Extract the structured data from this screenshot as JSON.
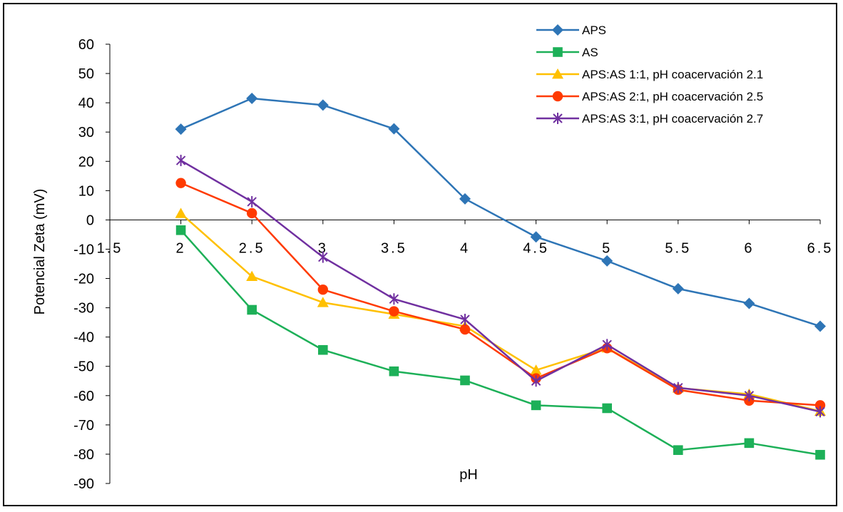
{
  "chart_data": {
    "type": "line",
    "xlabel": "pH",
    "ylabel": "Potencial Zeta (mV)",
    "xlim": [
      1.5,
      6.5
    ],
    "ylim": [
      -90,
      60
    ],
    "x_ticks": [
      "1.5",
      "2",
      "2.5",
      "3",
      "3.5",
      "4",
      "4.5",
      "5",
      "5.5",
      "6",
      "6.5"
    ],
    "y_ticks": [
      "60",
      "50",
      "40",
      "30",
      "20",
      "10",
      "0",
      "-10",
      "-20",
      "-30",
      "-40",
      "-50",
      "-60",
      "-70",
      "-80",
      "-90"
    ],
    "legend_position": "top-right",
    "grid": false,
    "series": [
      {
        "name": "APS",
        "color": "#2E75B6",
        "marker": "diamond",
        "x": [
          2,
          2.5,
          3,
          3.5,
          4,
          4.5,
          5,
          5.5,
          6,
          6.5
        ],
        "y": [
          31,
          41.5,
          39.2,
          31.1,
          7.2,
          -5.8,
          -14,
          -23.5,
          -28.5,
          -36.3
        ]
      },
      {
        "name": "AS",
        "color": "#1DB058",
        "marker": "square",
        "x": [
          2,
          2.5,
          3,
          3.5,
          4,
          4.5,
          5,
          5.5,
          6,
          6.5
        ],
        "y": [
          -3.5,
          -30.7,
          -44.4,
          -51.7,
          -54.8,
          -63.3,
          -64.3,
          -78.6,
          -76.2,
          -80.2
        ]
      },
      {
        "name": "APS:AS 1:1, pH coacervación 2.1",
        "color": "#FFC000",
        "marker": "triangle",
        "x": [
          2,
          2.5,
          3,
          3.5,
          4,
          4.5,
          5,
          5.5,
          6,
          6.5
        ],
        "y": [
          2.2,
          -19.3,
          -28.2,
          -32.2,
          -36.3,
          -51.3,
          -43.7,
          -57.4,
          -59.5,
          -65.3
        ]
      },
      {
        "name": "APS:AS 2:1, pH coacervación 2.5",
        "color": "#FF3A00",
        "marker": "circle",
        "x": [
          2,
          2.5,
          3,
          3.5,
          4,
          4.5,
          5,
          5.5,
          6,
          6.5
        ],
        "y": [
          12.6,
          2.3,
          -23.8,
          -31.2,
          -37.4,
          -54.1,
          -43.8,
          -58,
          -61.7,
          -63.3
        ]
      },
      {
        "name": "APS:AS 3:1, pH coacervación 2.7",
        "color": "#7030A0",
        "marker": "asterisk",
        "x": [
          2,
          2.5,
          3,
          3.5,
          4,
          4.5,
          5,
          5.5,
          6,
          6.5
        ],
        "y": [
          20.3,
          6.2,
          -12.7,
          -27,
          -34,
          -55,
          -42.6,
          -57.3,
          -60,
          -65.5
        ]
      }
    ]
  }
}
